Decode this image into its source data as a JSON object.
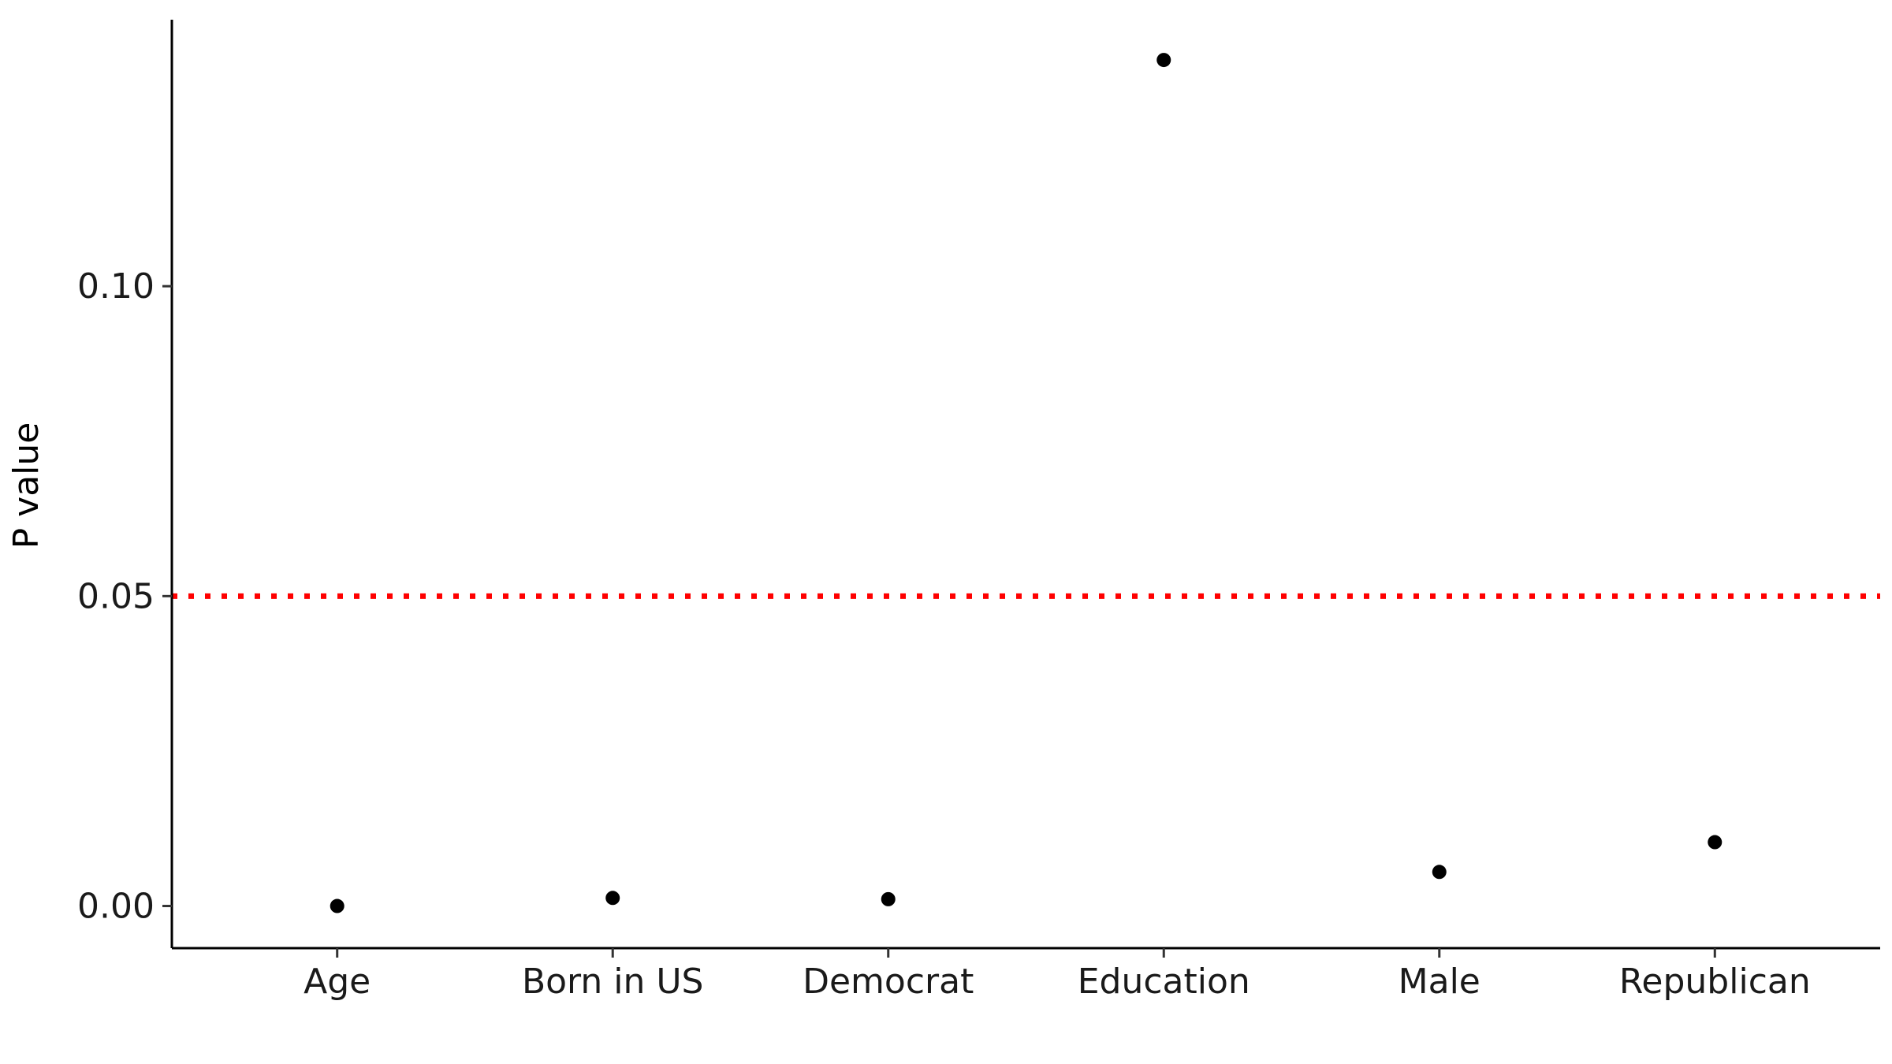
{
  "chart_data": {
    "type": "scatter",
    "title": "",
    "xlabel": "",
    "ylabel": "P value",
    "categories": [
      "Age",
      "Born in US",
      "Democrat",
      "Education",
      "Male",
      "Republican"
    ],
    "values": [
      0.0,
      0.0013,
      0.0011,
      0.1365,
      0.0055,
      0.0103
    ],
    "ylim": [
      -0.0068,
      0.143
    ],
    "yticks": [
      0.0,
      0.05,
      0.1
    ],
    "ytick_labels": [
      "0.00",
      "0.05",
      "0.10"
    ],
    "reference_line": {
      "y": 0.05,
      "style": "dotted",
      "color": "#ff0000"
    },
    "grid": false,
    "legend": "none",
    "point_color": "#000000",
    "axis_color": "#000000"
  }
}
